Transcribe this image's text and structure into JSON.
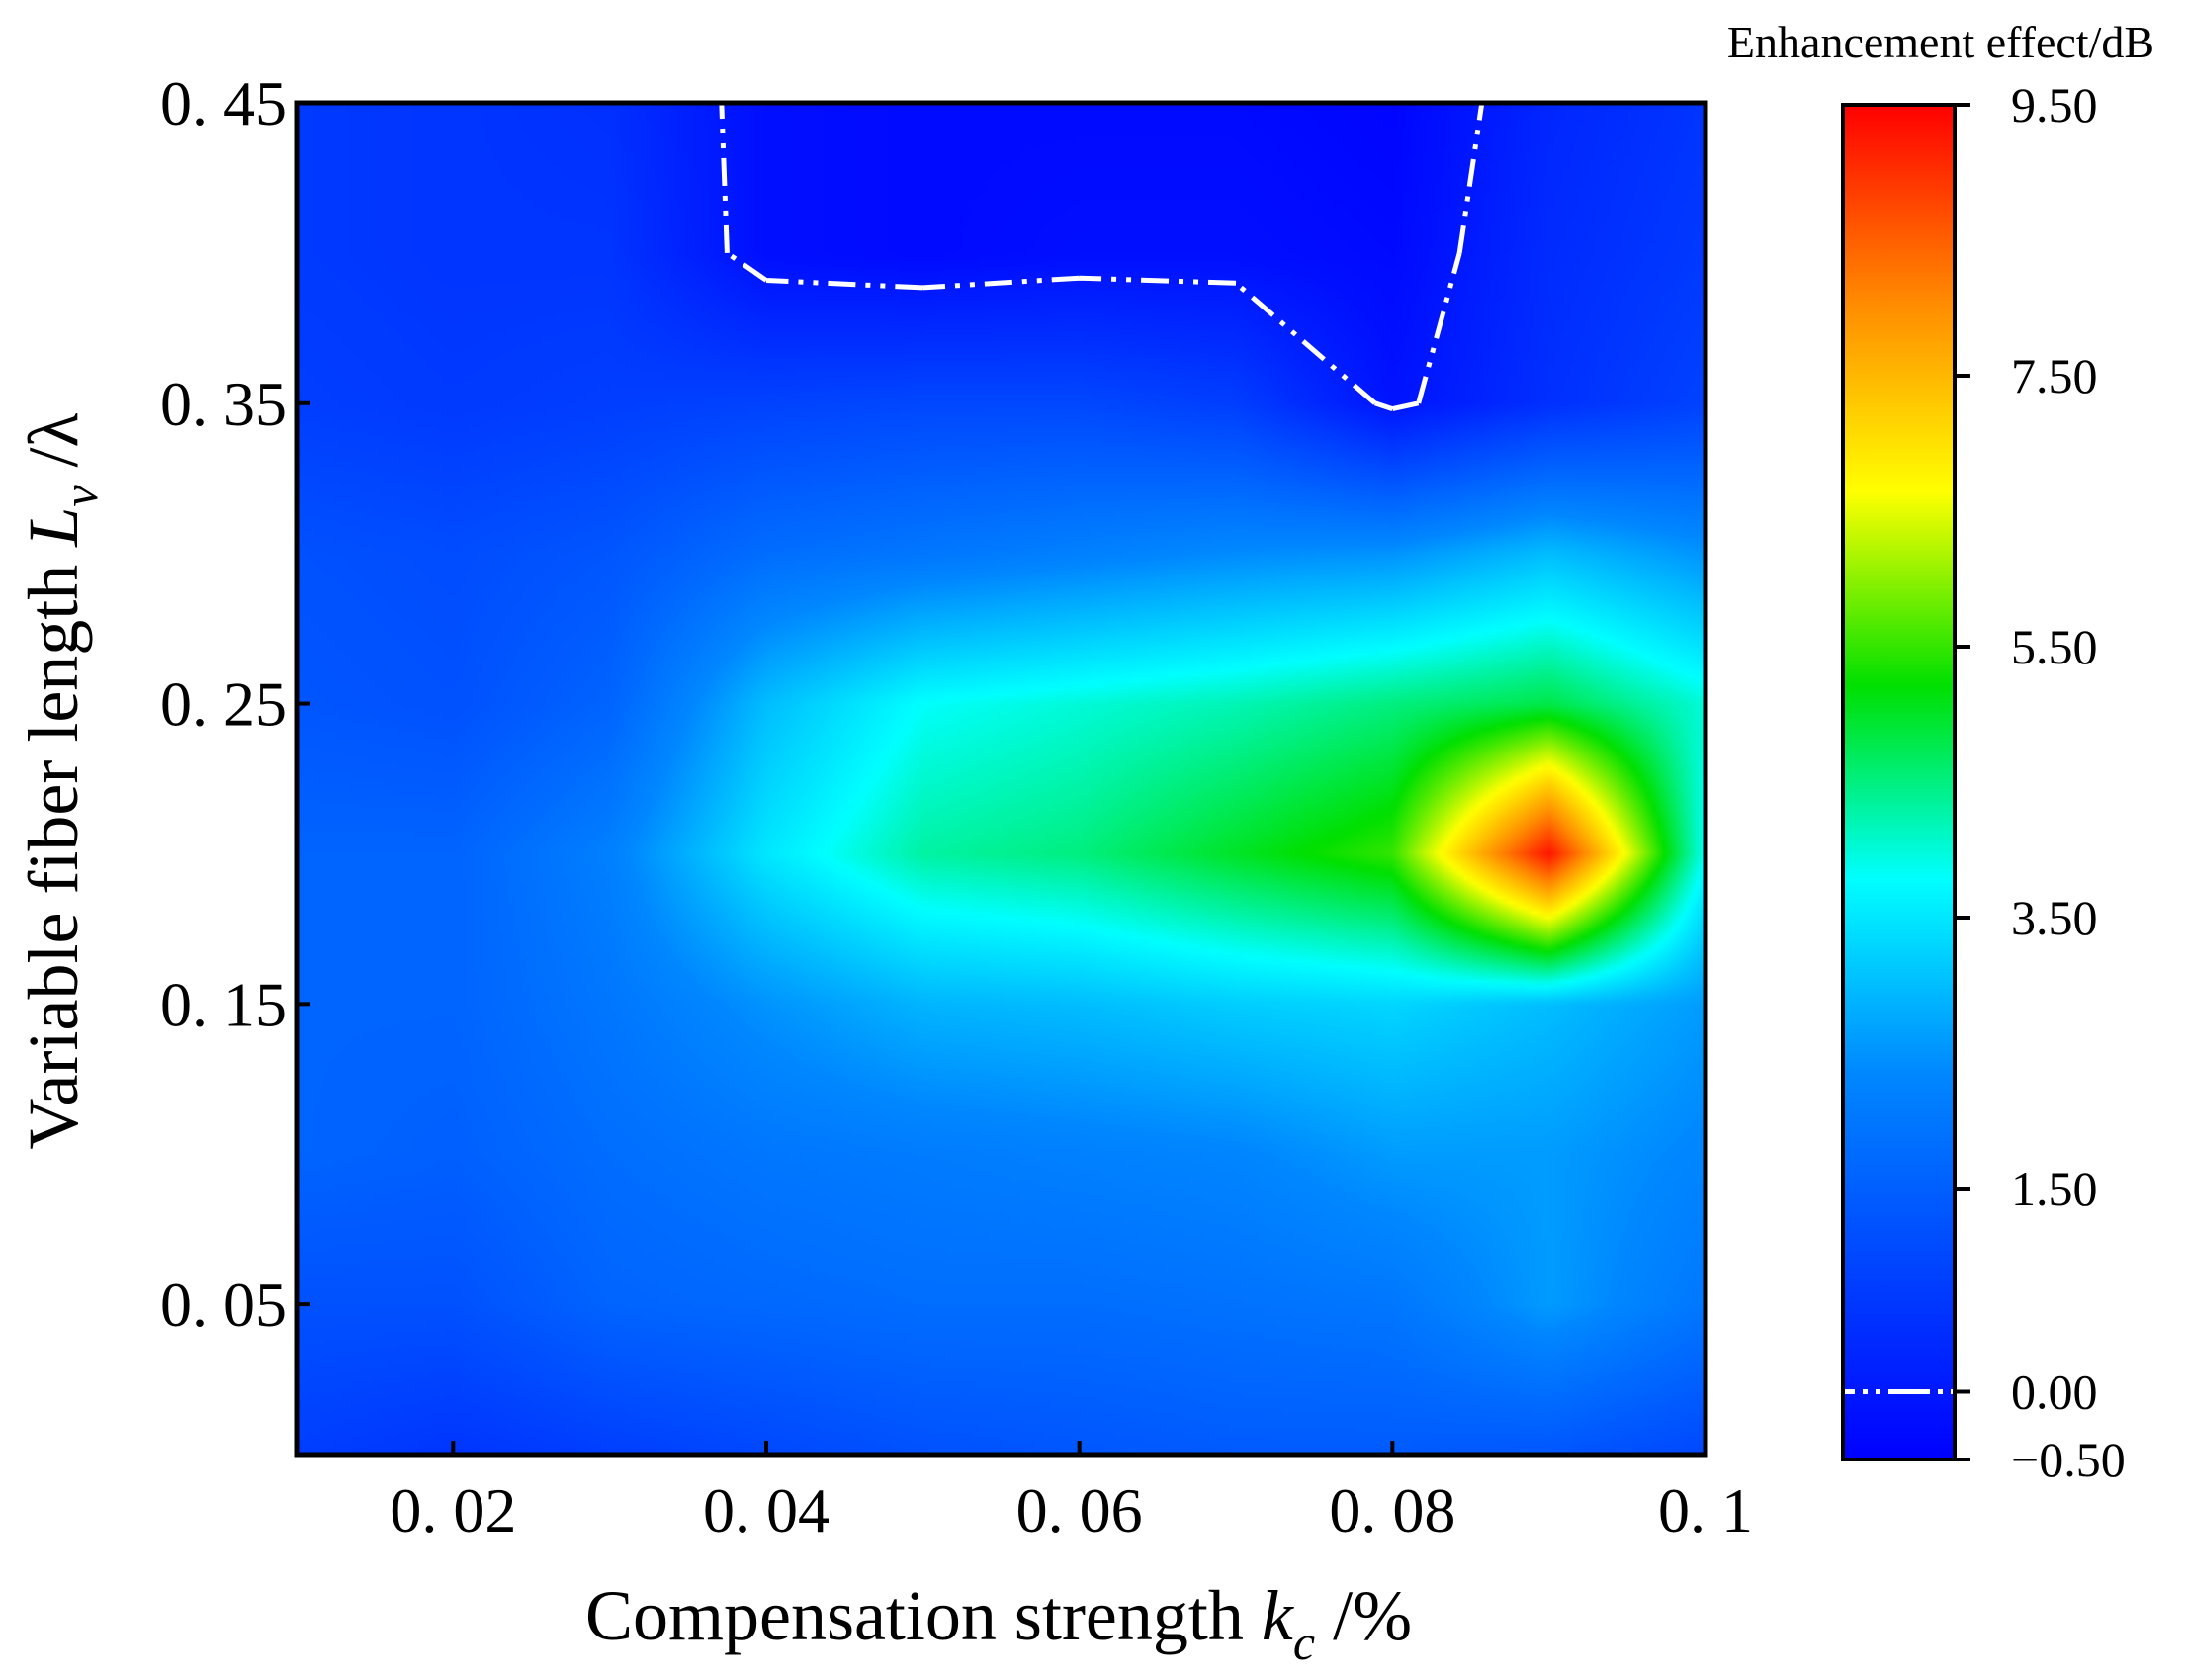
{
  "chart_data": {
    "type": "heatmap",
    "title": "",
    "xlabel": {
      "prefix": "Compensation strength ",
      "var": "k",
      "sub": "c",
      "suffix": " /%"
    },
    "ylabel": {
      "prefix": "Variable fiber length ",
      "var": "L",
      "sub": "v",
      "suffix": " /λ"
    },
    "colorbar_title": "Enhancement effect/dB",
    "xlim": [
      0.01,
      0.1
    ],
    "ylim": [
      0.0,
      0.45
    ],
    "x_ticks": [
      {
        "value": 0.02,
        "label": "0. 02"
      },
      {
        "value": 0.04,
        "label": "0. 04"
      },
      {
        "value": 0.06,
        "label": "0. 06"
      },
      {
        "value": 0.08,
        "label": "0. 08"
      },
      {
        "value": 0.1,
        "label": "0. 1"
      }
    ],
    "y_ticks": [
      {
        "value": 0.05,
        "label": "0. 05"
      },
      {
        "value": 0.15,
        "label": "0. 15"
      },
      {
        "value": 0.25,
        "label": "0. 25"
      },
      {
        "value": 0.35,
        "label": "0. 35"
      },
      {
        "value": 0.45,
        "label": "0. 45"
      }
    ],
    "colorbar": {
      "min": -0.5,
      "max": 9.5,
      "ticks": [
        {
          "value": 9.5,
          "label": "9.50"
        },
        {
          "value": 7.5,
          "label": "7.50"
        },
        {
          "value": 5.5,
          "label": "5.50"
        },
        {
          "value": 3.5,
          "label": "3.50"
        },
        {
          "value": 1.5,
          "label": "1.50"
        },
        {
          "value": 0.0,
          "label": "0.00"
        },
        {
          "value": -0.5,
          "label": "−0.50"
        }
      ],
      "colors": [
        "#0000ff",
        "#0044ff",
        "#0088ff",
        "#00ffff",
        "#00e000",
        "#ffff00",
        "#ff8800",
        "#ff0000"
      ],
      "contour_level": 0.0
    },
    "x": [
      0.01,
      0.02,
      0.03,
      0.04,
      0.05,
      0.06,
      0.07,
      0.08,
      0.09,
      0.1
    ],
    "y": [
      0.0,
      0.05,
      0.1,
      0.15,
      0.2,
      0.25,
      0.3,
      0.35,
      0.4,
      0.45
    ],
    "z": [
      [
        0.8,
        0.6,
        0.8,
        1.0,
        1.2,
        1.3,
        1.4,
        1.4,
        1.3,
        1.0
      ],
      [
        1.2,
        1.2,
        1.6,
        1.7,
        1.8,
        1.8,
        1.9,
        2.0,
        2.6,
        2.0
      ],
      [
        1.6,
        1.5,
        1.8,
        2.0,
        2.1,
        2.2,
        2.3,
        2.6,
        2.6,
        2.3
      ],
      [
        1.6,
        1.6,
        2.0,
        2.5,
        2.9,
        3.0,
        3.2,
        3.3,
        3.0,
        2.6
      ],
      [
        1.6,
        1.6,
        2.2,
        3.5,
        4.3,
        4.5,
        5.0,
        5.5,
        9.3,
        3.8
      ],
      [
        1.3,
        1.2,
        1.6,
        3.0,
        3.8,
        4.0,
        4.2,
        4.5,
        4.8,
        4.0
      ],
      [
        1.2,
        1.1,
        1.3,
        1.8,
        2.0,
        2.2,
        2.4,
        2.5,
        3.0,
        2.5
      ],
      [
        0.8,
        0.7,
        0.8,
        0.9,
        1.0,
        1.0,
        0.8,
        -0.1,
        0.5,
        0.9
      ],
      [
        0.7,
        0.6,
        0.6,
        -0.2,
        -0.3,
        -0.2,
        -0.2,
        -0.3,
        0.4,
        0.7
      ],
      [
        0.7,
        0.6,
        0.5,
        -0.2,
        -0.3,
        -0.3,
        -0.3,
        -0.4,
        0.3,
        0.6
      ]
    ]
  }
}
